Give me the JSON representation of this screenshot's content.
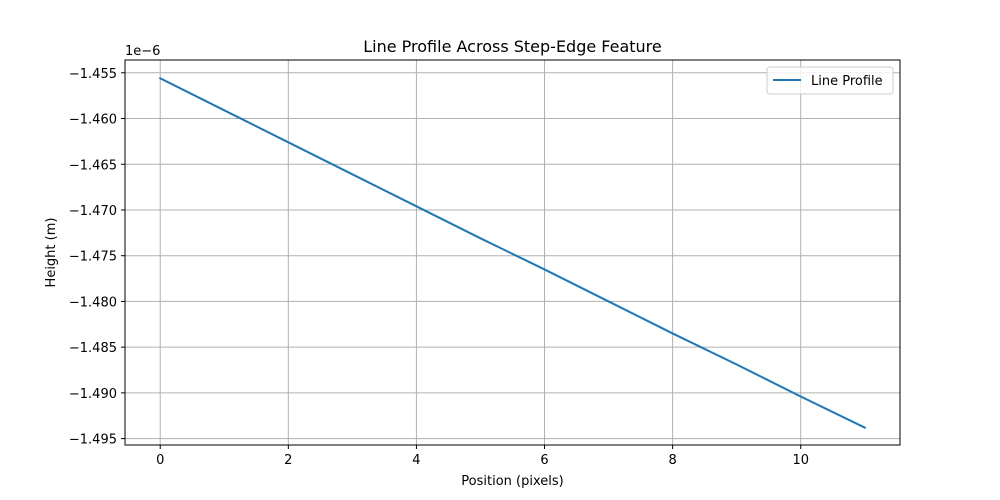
{
  "chart_data": {
    "type": "line",
    "title": "Line Profile Across Step-Edge Feature",
    "xlabel": "Position (pixels)",
    "ylabel": "Height (m)",
    "y_offset_label": "1e−6",
    "xlim": [
      -0.55,
      11.55
    ],
    "ylim": [
      -1.4957,
      -1.4536
    ],
    "x_ticks": [
      0,
      2,
      4,
      6,
      8,
      10
    ],
    "x_tick_labels": [
      "0",
      "2",
      "4",
      "6",
      "8",
      "10"
    ],
    "y_ticks": [
      -1.455,
      -1.46,
      -1.465,
      -1.47,
      -1.475,
      -1.48,
      -1.485,
      -1.49,
      -1.495
    ],
    "y_tick_labels": [
      "−1.455",
      "−1.460",
      "−1.465",
      "−1.470",
      "−1.475",
      "−1.480",
      "−1.485",
      "−1.490",
      "−1.495"
    ],
    "grid": true,
    "legend_position": "top-right",
    "series": [
      {
        "name": "Line Profile",
        "color": "#1f77b4",
        "x": [
          0,
          1,
          2,
          3,
          4,
          5,
          6,
          7,
          8,
          9,
          10,
          11
        ],
        "y": [
          -1.4556,
          -1.4591,
          -1.4626,
          -1.4661,
          -1.4696,
          -1.4731,
          -1.4765,
          -1.48,
          -1.4835,
          -1.4869,
          -1.4904,
          -1.4938
        ]
      }
    ]
  }
}
